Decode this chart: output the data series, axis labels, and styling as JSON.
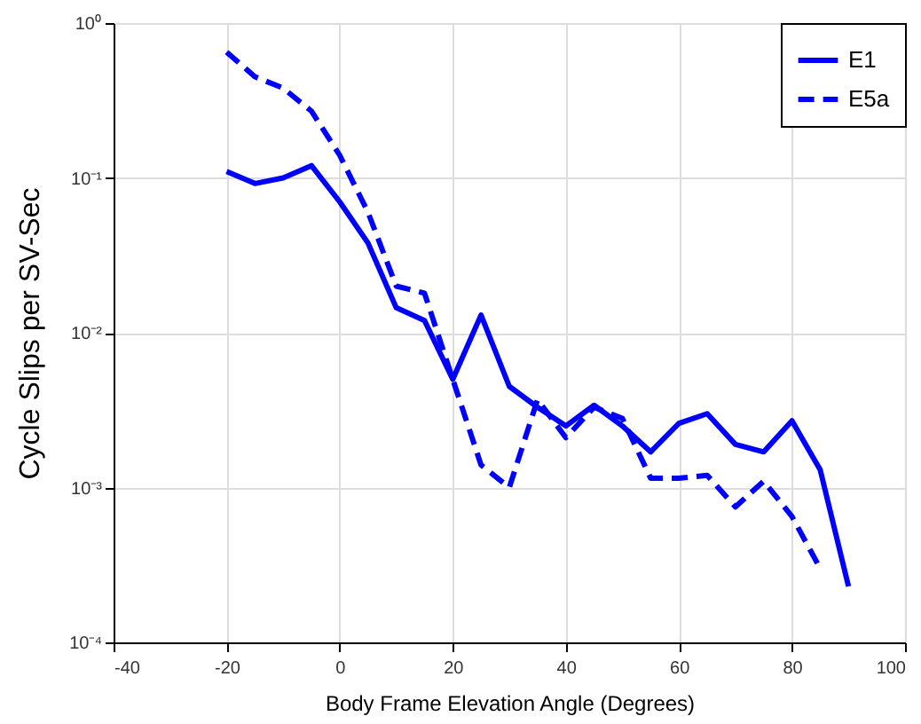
{
  "chart_data": {
    "type": "line",
    "xlabel": "Body Frame Elevation Angle (Degrees)",
    "ylabel": "Cycle Slips per SV-Sec",
    "log": "y",
    "grid": true,
    "legend": "top right",
    "x": [
      -20,
      -15,
      -10,
      -5,
      0,
      5,
      10,
      15,
      20,
      25,
      30,
      35,
      40,
      45,
      50,
      55,
      60,
      65,
      70,
      75,
      80,
      85,
      90
    ],
    "xlim": [
      -40,
      100
    ],
    "xticks": [
      -40,
      -20,
      0,
      20,
      40,
      60,
      80,
      100
    ],
    "ylim": [
      0.0001,
      1
    ],
    "yticks": [
      {
        "value": 0.0001,
        "label": "10⁻⁴"
      },
      {
        "value": 0.001,
        "label": "10⁻³"
      },
      {
        "value": 0.01,
        "label": "10⁻²"
      },
      {
        "value": 0.1,
        "label": "10⁻¹"
      },
      {
        "value": 1,
        "label": "10⁰"
      }
    ],
    "series": [
      {
        "name": "E1",
        "color": "#0000ff",
        "line_style": "solid",
        "values": [
          0.11,
          0.092,
          0.1,
          0.12,
          0.07,
          0.038,
          0.0145,
          0.012,
          0.005,
          0.013,
          0.0045,
          0.0033,
          0.0025,
          0.0034,
          0.0025,
          0.0017,
          0.0026,
          0.003,
          0.0019,
          0.0017,
          0.0027,
          0.0013,
          0.00023
        ]
      },
      {
        "name": "E5a",
        "color": "#0000ff",
        "line_style": "dashed",
        "values": [
          0.65,
          0.45,
          0.38,
          0.27,
          0.14,
          0.06,
          0.02,
          0.018,
          0.005,
          0.0014,
          0.001,
          0.0037,
          0.0021,
          0.0033,
          0.0028,
          0.00115,
          0.00115,
          0.0012,
          0.00075,
          0.0011,
          0.00065,
          0.0003,
          null
        ]
      }
    ]
  }
}
